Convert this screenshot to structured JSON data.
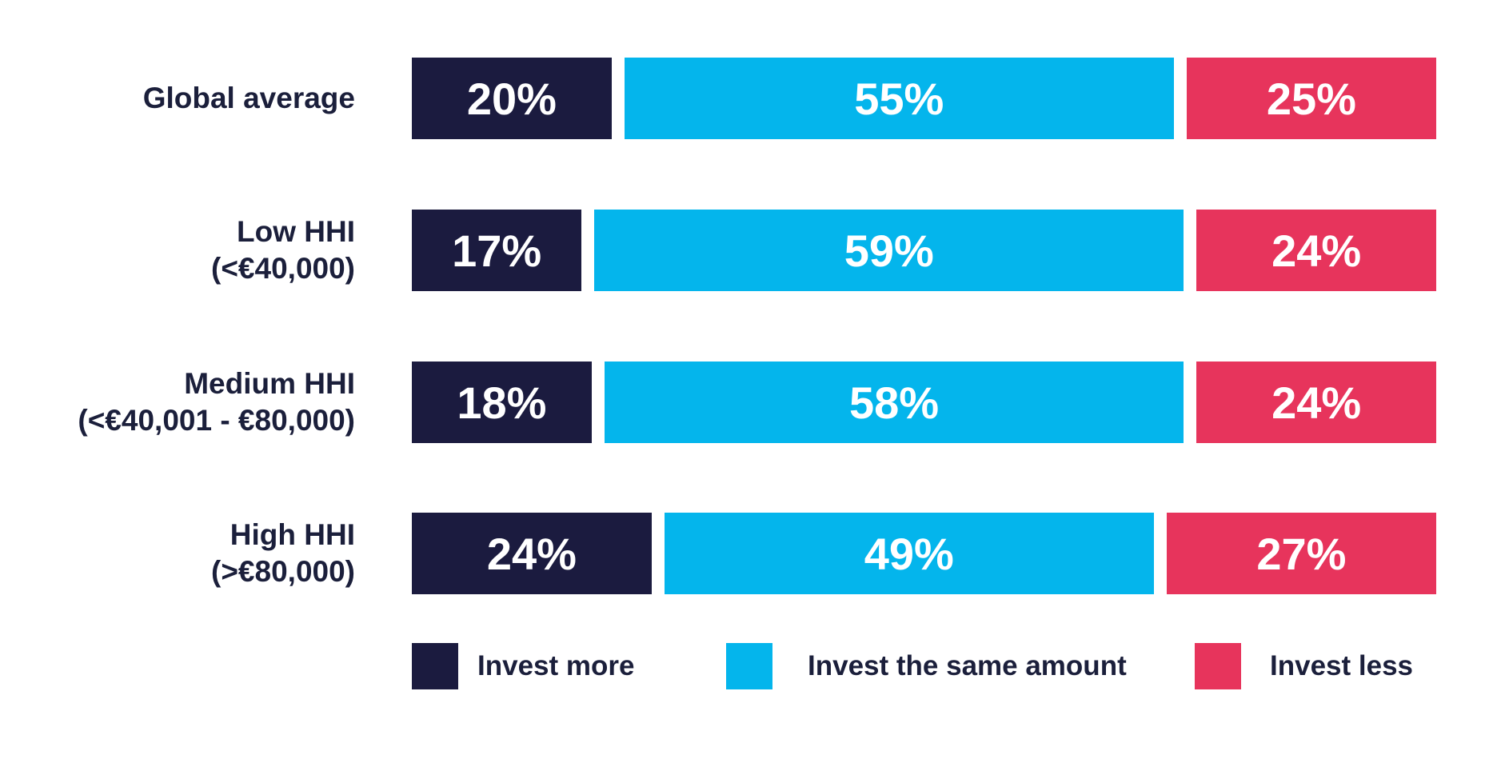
{
  "chart_data": {
    "type": "bar",
    "orientation": "horizontal",
    "stacked": true,
    "categories": [
      [
        "Global average"
      ],
      [
        "Low HHI",
        "(<€40,000)"
      ],
      [
        "Medium HHI",
        "(<€40,001 - €80,000)"
      ],
      [
        "High HHI",
        "(>€80,000)"
      ]
    ],
    "series": [
      {
        "name": "Invest more",
        "color": "#1b1b3f",
        "values": [
          20,
          17,
          18,
          24
        ],
        "labels": [
          "20%",
          "17%",
          "18%",
          "24%"
        ]
      },
      {
        "name": "Invest the same amount",
        "color": "#04b5ec",
        "values": [
          55,
          59,
          58,
          49
        ],
        "labels": [
          "55%",
          "59%",
          "58%",
          "49%"
        ]
      },
      {
        "name": "Invest less",
        "color": "#e7345c",
        "values": [
          25,
          24,
          24,
          27
        ],
        "labels": [
          "25%",
          "24%",
          "24%",
          "27%"
        ]
      }
    ],
    "grid": false,
    "legend": "bottom"
  }
}
